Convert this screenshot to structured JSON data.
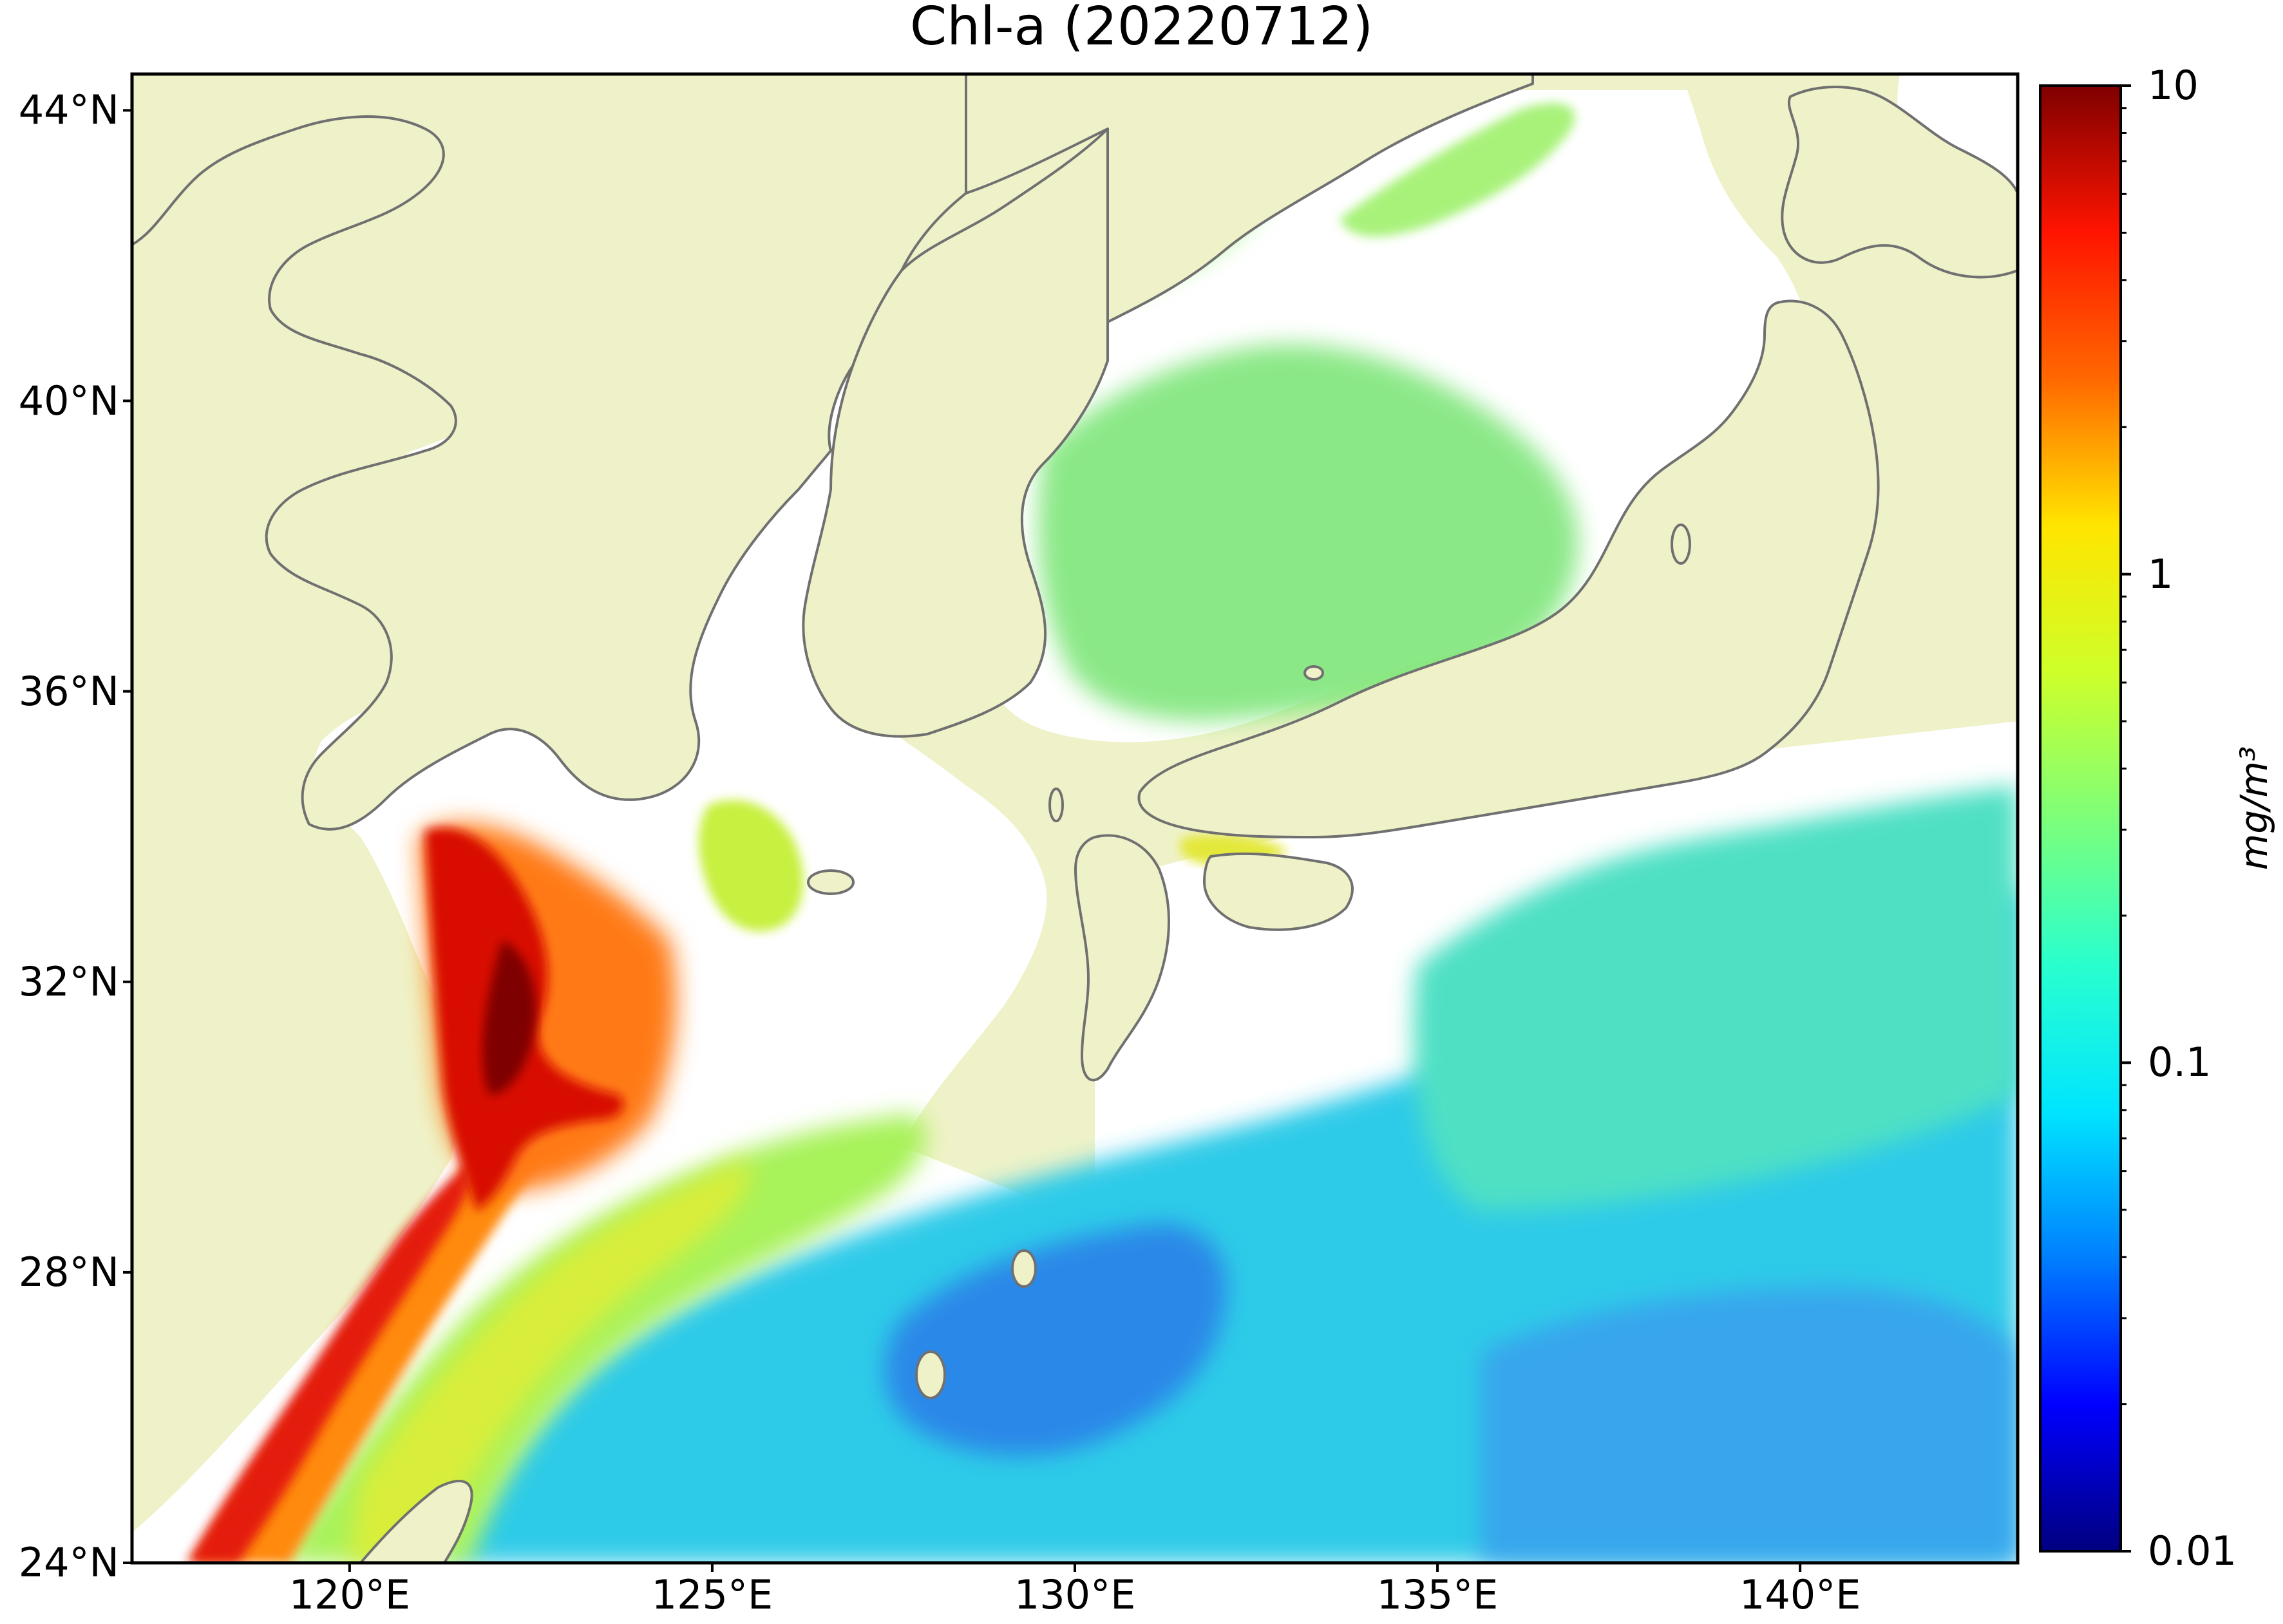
{
  "title": "Chl-a (20220712)",
  "map": {
    "lon_range": [
      117,
      143
    ],
    "lat_range": [
      24,
      44.5
    ],
    "land_color": "#eff2c8",
    "coast_color": "#707070",
    "no_data_color": "#ffffff",
    "lat_ticks": [
      {
        "value": 24,
        "label": "24°N"
      },
      {
        "value": 28,
        "label": "28°N"
      },
      {
        "value": 32,
        "label": "32°N"
      },
      {
        "value": 36,
        "label": "36°N"
      },
      {
        "value": 40,
        "label": "40°N"
      },
      {
        "value": 44,
        "label": "44°N"
      }
    ],
    "lon_ticks": [
      {
        "value": 120,
        "label": "120°E"
      },
      {
        "value": 125,
        "label": "125°E"
      },
      {
        "value": 130,
        "label": "130°E"
      },
      {
        "value": 135,
        "label": "135°E"
      },
      {
        "value": 140,
        "label": "140°E"
      }
    ]
  },
  "colorbar": {
    "scale": "log",
    "range": [
      0.01,
      10
    ],
    "unit_label": "mg/m³",
    "ticks": [
      {
        "value": 10,
        "label": "10"
      },
      {
        "value": 1,
        "label": "1"
      },
      {
        "value": 0.1,
        "label": "0.1"
      },
      {
        "value": 0.01,
        "label": "0.01"
      }
    ],
    "colormap": [
      "#00007f",
      "#0000ff",
      "#007fff",
      "#00e5ff",
      "#29ffce",
      "#7dff7a",
      "#ceff29",
      "#ffe500",
      "#ff6800",
      "#ff1400",
      "#7f0000"
    ]
  }
}
